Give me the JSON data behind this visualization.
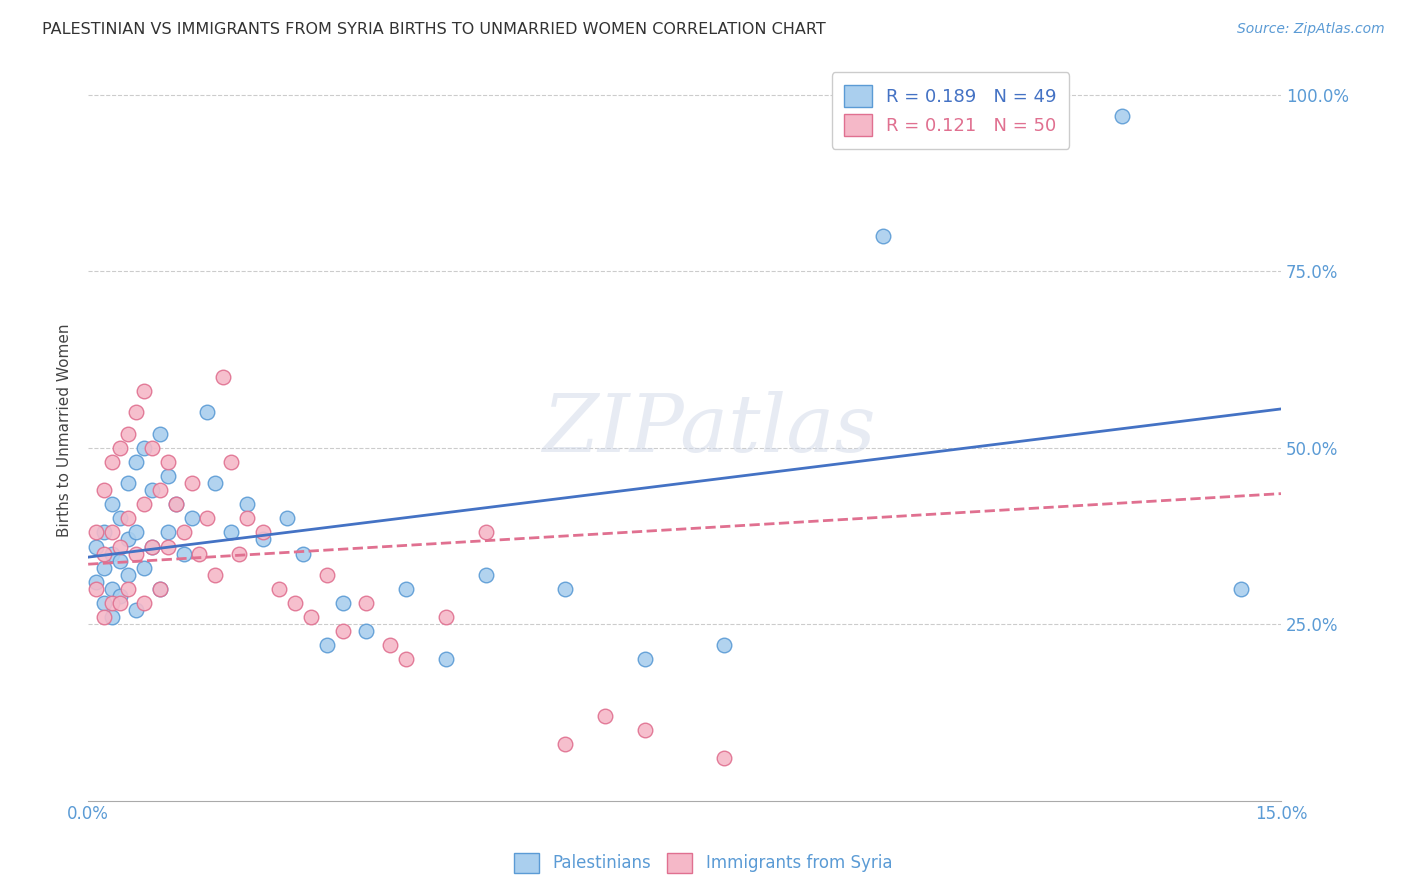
{
  "title": "PALESTINIAN VS IMMIGRANTS FROM SYRIA BIRTHS TO UNMARRIED WOMEN CORRELATION CHART",
  "source": "Source: ZipAtlas.com",
  "ylabel": "Births to Unmarried Women",
  "xlim": [
    0.0,
    0.15
  ],
  "ylim": [
    0.0,
    1.05
  ],
  "palestinians_R": 0.189,
  "palestinians_N": 49,
  "syria_R": 0.121,
  "syria_N": 50,
  "blue_color": "#aacfee",
  "pink_color": "#f5b8c8",
  "blue_edge_color": "#5b9bd5",
  "pink_edge_color": "#e07090",
  "blue_line_color": "#4472c4",
  "pink_line_color": "#e07090",
  "tick_color": "#5b9bd5",
  "watermark": "ZIPatlas",
  "palestinians_x": [
    0.001,
    0.001,
    0.002,
    0.002,
    0.002,
    0.003,
    0.003,
    0.003,
    0.003,
    0.004,
    0.004,
    0.004,
    0.005,
    0.005,
    0.005,
    0.006,
    0.006,
    0.006,
    0.007,
    0.007,
    0.008,
    0.008,
    0.009,
    0.009,
    0.01,
    0.01,
    0.011,
    0.012,
    0.013,
    0.015,
    0.016,
    0.018,
    0.02,
    0.022,
    0.025,
    0.027,
    0.03,
    0.032,
    0.035,
    0.04,
    0.045,
    0.05,
    0.06,
    0.07,
    0.08,
    0.095,
    0.1,
    0.13,
    0.145
  ],
  "palestinians_y": [
    0.36,
    0.31,
    0.38,
    0.33,
    0.28,
    0.42,
    0.35,
    0.3,
    0.26,
    0.4,
    0.34,
    0.29,
    0.45,
    0.37,
    0.32,
    0.48,
    0.38,
    0.27,
    0.5,
    0.33,
    0.44,
    0.36,
    0.52,
    0.3,
    0.46,
    0.38,
    0.42,
    0.35,
    0.4,
    0.55,
    0.45,
    0.38,
    0.42,
    0.37,
    0.4,
    0.35,
    0.22,
    0.28,
    0.24,
    0.3,
    0.2,
    0.32,
    0.3,
    0.2,
    0.22,
    0.97,
    0.8,
    0.97,
    0.3
  ],
  "syria_x": [
    0.001,
    0.001,
    0.002,
    0.002,
    0.002,
    0.003,
    0.003,
    0.003,
    0.004,
    0.004,
    0.004,
    0.005,
    0.005,
    0.005,
    0.006,
    0.006,
    0.007,
    0.007,
    0.007,
    0.008,
    0.008,
    0.009,
    0.009,
    0.01,
    0.01,
    0.011,
    0.012,
    0.013,
    0.014,
    0.015,
    0.016,
    0.017,
    0.018,
    0.019,
    0.02,
    0.022,
    0.024,
    0.026,
    0.028,
    0.03,
    0.032,
    0.035,
    0.038,
    0.04,
    0.045,
    0.05,
    0.06,
    0.065,
    0.07,
    0.08
  ],
  "syria_y": [
    0.38,
    0.3,
    0.44,
    0.35,
    0.26,
    0.48,
    0.38,
    0.28,
    0.5,
    0.36,
    0.28,
    0.52,
    0.4,
    0.3,
    0.55,
    0.35,
    0.58,
    0.42,
    0.28,
    0.5,
    0.36,
    0.44,
    0.3,
    0.48,
    0.36,
    0.42,
    0.38,
    0.45,
    0.35,
    0.4,
    0.32,
    0.6,
    0.48,
    0.35,
    0.4,
    0.38,
    0.3,
    0.28,
    0.26,
    0.32,
    0.24,
    0.28,
    0.22,
    0.2,
    0.26,
    0.38,
    0.08,
    0.12,
    0.1,
    0.06
  ]
}
